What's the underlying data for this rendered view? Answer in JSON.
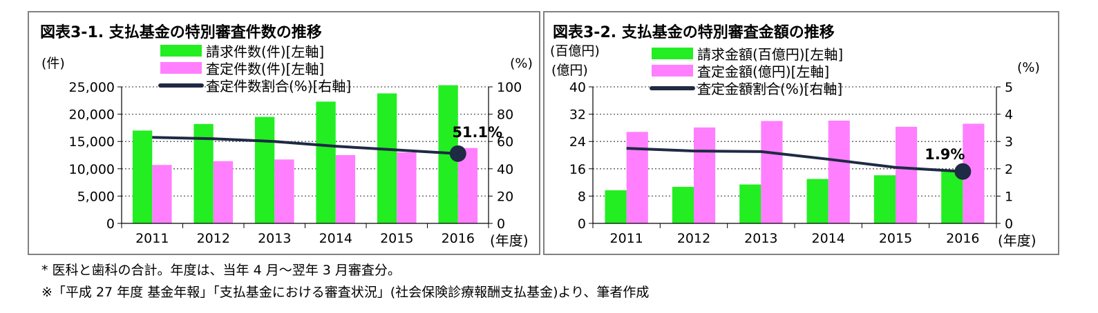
{
  "chart_data": [
    {
      "type": "bar",
      "title": "図表3-1.  支払基金の特別審査件数の推移",
      "left_unit": "(件)",
      "right_unit": "(%)",
      "x_unit": "(年度)",
      "categories": [
        "2011",
        "2012",
        "2013",
        "2014",
        "2015",
        "2016"
      ],
      "ylim_left": [
        0,
        25000
      ],
      "ylim_right": [
        0,
        100
      ],
      "left_ticks": [
        "0",
        "5,000",
        "10,000",
        "15,000",
        "20,000",
        "25,000"
      ],
      "right_ticks": [
        "0",
        "20",
        "40",
        "60",
        "80",
        "100"
      ],
      "legend_position": "top",
      "series": [
        {
          "name": "請求件数(件)[左軸]",
          "axis": "left",
          "kind": "bar",
          "color": "#22ee22",
          "values": [
            17000,
            18200,
            19500,
            22300,
            23800,
            25300
          ]
        },
        {
          "name": "査定件数(件)[左軸]",
          "axis": "left",
          "kind": "bar",
          "color": "#ff7fff",
          "values": [
            10700,
            11400,
            11700,
            12500,
            13000,
            13800
          ]
        },
        {
          "name": "査定件数割合(%)[右軸]",
          "axis": "right",
          "kind": "line",
          "color": "#1f2a44",
          "values": [
            63,
            62,
            60,
            56.5,
            53.8,
            51.1
          ]
        }
      ],
      "annotation": {
        "text": "51.1%",
        "series": 2,
        "index": 5
      }
    },
    {
      "type": "bar",
      "title": "図表3-2.  支払基金の特別審査金額の推移",
      "left_unit": "(百億円)",
      "left_unit_2": "(億円)",
      "right_unit": "(%)",
      "x_unit": "(年度)",
      "categories": [
        "2011",
        "2012",
        "2013",
        "2014",
        "2015",
        "2016"
      ],
      "ylim_left": [
        0,
        40
      ],
      "ylim_right": [
        0,
        5
      ],
      "left_ticks": [
        "0",
        "8",
        "16",
        "24",
        "32",
        "40"
      ],
      "right_ticks": [
        "0",
        "1",
        "2",
        "3",
        "4",
        "5"
      ],
      "legend_position": "top",
      "series": [
        {
          "name": "請求金額(百億円)[左軸]",
          "axis": "left",
          "kind": "bar",
          "color": "#22ee22",
          "values": [
            9.7,
            10.7,
            11.4,
            13.0,
            14.1,
            15.3
          ]
        },
        {
          "name": "査定金額(億円)[左軸]",
          "axis": "left",
          "kind": "bar",
          "color": "#ff7fff",
          "values": [
            26.8,
            28.1,
            30.0,
            30.1,
            28.3,
            29.2
          ]
        },
        {
          "name": "査定金額割合(%)[右軸]",
          "axis": "right",
          "kind": "line",
          "color": "#1f2a44",
          "values": [
            2.75,
            2.65,
            2.63,
            2.35,
            2.05,
            1.9
          ]
        }
      ],
      "annotation": {
        "text": "1.9%",
        "series": 2,
        "index": 5
      }
    }
  ],
  "notes": {
    "line1": "*  医科と歯科の合計。年度は、当年 4 月～翌年 3 月審査分。",
    "line2": "※「平成 27 年度 基金年報」「支払基金における審査状況」(社会保険診療報酬支払基金)より、筆者作成"
  }
}
